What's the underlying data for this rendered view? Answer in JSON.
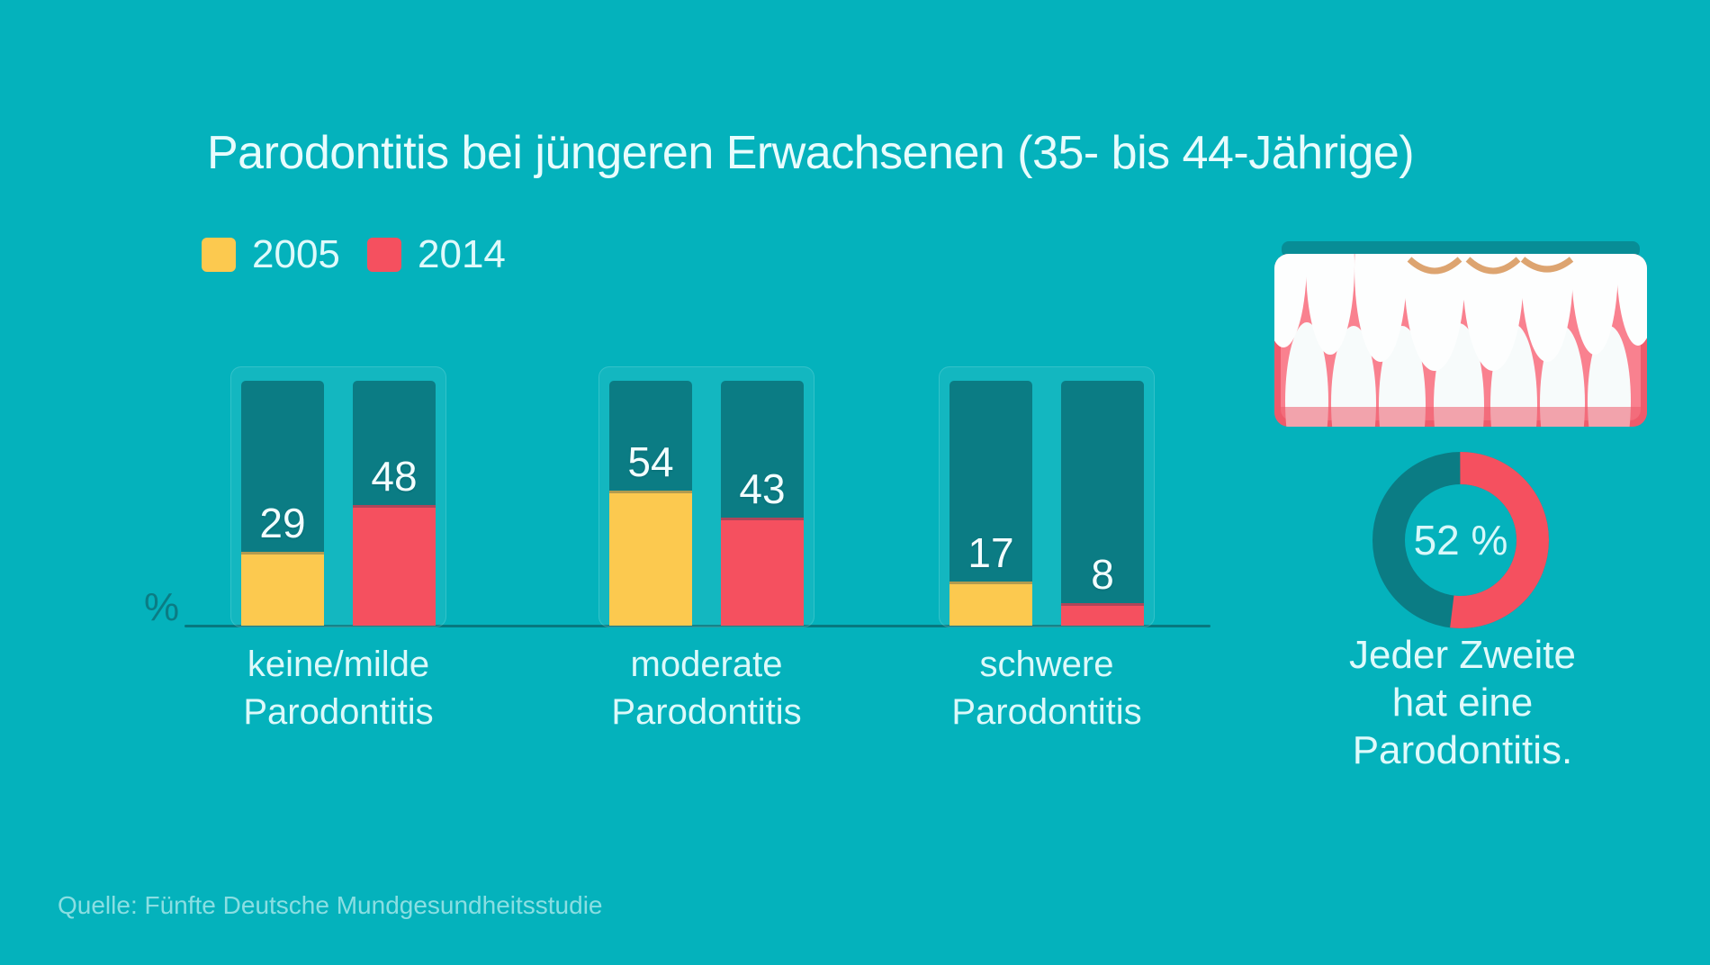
{
  "chart_data": {
    "type": "bar",
    "title": "Parodontitis bei jüngeren Erwachsenen (35- bis 44-Jährige)",
    "unit": "%",
    "ylabel": "%",
    "ylim": [
      0,
      100
    ],
    "grid": false,
    "legend_position": "top-left",
    "categories": [
      "keine/milde\nParodontitis",
      "moderate\nParodontitis",
      "schwere\nParodontitis"
    ],
    "series": [
      {
        "name": "2005",
        "color": "#fcc94f",
        "values": [
          29,
          54,
          17
        ]
      },
      {
        "name": "2014",
        "color": "#f5505f",
        "values": [
          48,
          43,
          8
        ]
      }
    ]
  },
  "donut": {
    "type": "donut",
    "value": 52,
    "label": "52 %",
    "caption": "Jeder Zweite\nhat eine\nParodontitis.",
    "value_arc_color": "#f5505f",
    "rest_arc_color": "#0b7c84"
  },
  "source": "Quelle: Fünfte Deutsche Mundgesundheitsstudie",
  "colors": {
    "background": "#04b2bc",
    "column_track": "#0b7c84",
    "series_2005": "#fcc94f",
    "series_2014": "#f5505f",
    "axis": "#086d74",
    "text_light": "#e8fcfd",
    "gum_pink": "#f9818f",
    "gum_shadow": "#ee5b6c",
    "tooth_white": "#fdfefe"
  }
}
